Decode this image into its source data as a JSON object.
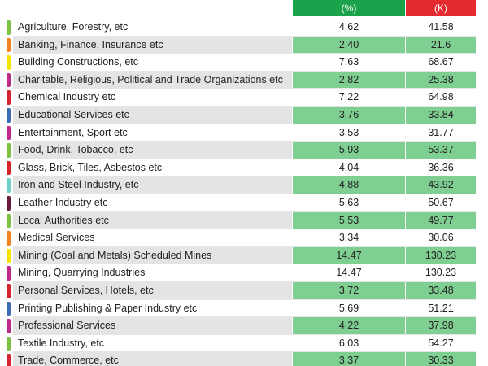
{
  "header": {
    "pct": "(%)",
    "k": "(K)"
  },
  "rows": [
    {
      "label": "Agriculture, Forestry, etc",
      "pct": "4.62",
      "k": "41.58",
      "color": "#7dc242"
    },
    {
      "label": "Banking, Finance, Insurance etc",
      "pct": "2.40",
      "k": "21.6",
      "color": "#f58220"
    },
    {
      "label": "Building Constructions, etc",
      "pct": "7.63",
      "k": "68.67",
      "color": "#f5e400"
    },
    {
      "label": "Charitable, Religious, Political and Trade Organizations etc",
      "pct": "2.82",
      "k": "25.38",
      "color": "#c02b8b"
    },
    {
      "label": "Chemical Industry etc",
      "pct": "7.22",
      "k": "64.98",
      "color": "#d5242d"
    },
    {
      "label": "Educational Services etc",
      "pct": "3.76",
      "k": "33.84",
      "color": "#3b6cb5"
    },
    {
      "label": "Entertainment, Sport etc",
      "pct": "3.53",
      "k": "31.77",
      "color": "#c02b8b"
    },
    {
      "label": "Food, Drink, Tobacco, etc",
      "pct": "5.93",
      "k": "53.37",
      "color": "#7dc242"
    },
    {
      "label": "Glass, Brick, Tiles, Asbestos etc",
      "pct": "4.04",
      "k": "36.36",
      "color": "#d5242d"
    },
    {
      "label": "Iron and Steel Industry, etc",
      "pct": "4.88",
      "k": "43.92",
      "color": "#6fd0c8"
    },
    {
      "label": "Leather Industry etc",
      "pct": "5.63",
      "k": "50.67",
      "color": "#6b1a3c"
    },
    {
      "label": "Local Authorities etc",
      "pct": "5.53",
      "k": "49.77",
      "color": "#7dc242"
    },
    {
      "label": "Medical Services",
      "pct": "3.34",
      "k": "30.06",
      "color": "#f58220"
    },
    {
      "label": "Mining (Coal and Metals) Scheduled Mines",
      "pct": "14.47",
      "k": "130.23",
      "color": "#f5e400"
    },
    {
      "label": "Mining, Quarrying Industries",
      "pct": "14.47",
      "k": "130.23",
      "color": "#c02b8b"
    },
    {
      "label": "Personal Services, Hotels, etc",
      "pct": "3.72",
      "k": "33.48",
      "color": "#d5242d"
    },
    {
      "label": "Printing Publishing & Paper Industry etc",
      "pct": "5.69",
      "k": "51.21",
      "color": "#3b6cb5"
    },
    {
      "label": "Professional Services",
      "pct": "4.22",
      "k": "37.98",
      "color": "#c02b8b"
    },
    {
      "label": "Textile Industry, etc",
      "pct": "6.03",
      "k": "54.27",
      "color": "#7dc242"
    },
    {
      "label": "Trade, Commerce, etc",
      "pct": "3.37",
      "k": "30.33",
      "color": "#d5242d"
    }
  ]
}
